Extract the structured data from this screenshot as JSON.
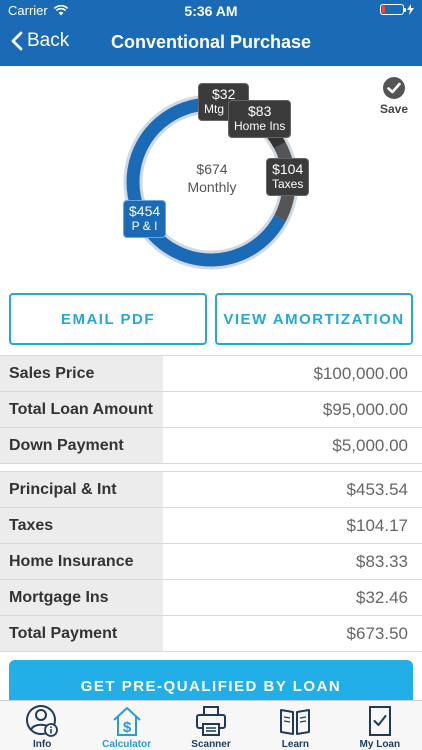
{
  "status": {
    "carrier": "Carrier",
    "time": "5:36 AM"
  },
  "nav": {
    "back_label": "Back",
    "title": "Conventional Purchase"
  },
  "save": {
    "label": "Save"
  },
  "colors": {
    "brand": "#1a6ab5",
    "accent": "#22aee6",
    "dark_segment": "#555555"
  },
  "chart_data": {
    "type": "pie",
    "center_value": "$674",
    "center_label": "Monthly",
    "slices": [
      {
        "value": 453.54,
        "value_label": "$454",
        "label": "P & I"
      },
      {
        "value": 104.17,
        "value_label": "$104",
        "label": "Taxes"
      },
      {
        "value": 83.33,
        "value_label": "$83",
        "label": "Home Ins"
      },
      {
        "value": 32.46,
        "value_label": "$32",
        "label": "Mtg Ins"
      }
    ]
  },
  "actions": {
    "email_pdf": "EMAIL PDF",
    "view_amortization": "VIEW AMORTIZATION"
  },
  "loan_table": [
    {
      "label": "Sales Price",
      "value": "$100,000.00"
    },
    {
      "label": "Total Loan Amount",
      "value": "$95,000.00"
    },
    {
      "label": "Down Payment",
      "value": "$5,000.00"
    }
  ],
  "payment_table": [
    {
      "label": "Principal & Int",
      "value": "$453.54"
    },
    {
      "label": "Taxes",
      "value": "$104.17"
    },
    {
      "label": "Home Insurance",
      "value": "$83.33"
    },
    {
      "label": "Mortgage Ins",
      "value": "$32.46"
    },
    {
      "label": "Total Payment",
      "value": "$673.50"
    }
  ],
  "cta": {
    "label": "GET PRE-QUALIFIED BY LOAN"
  },
  "tabs": [
    {
      "label": "Info",
      "icon": "person-info-icon"
    },
    {
      "label": "Calculator",
      "icon": "house-dollar-icon"
    },
    {
      "label": "Scanner",
      "icon": "printer-icon"
    },
    {
      "label": "Learn",
      "icon": "book-icon"
    },
    {
      "label": "My Loan",
      "icon": "document-check-icon"
    }
  ]
}
